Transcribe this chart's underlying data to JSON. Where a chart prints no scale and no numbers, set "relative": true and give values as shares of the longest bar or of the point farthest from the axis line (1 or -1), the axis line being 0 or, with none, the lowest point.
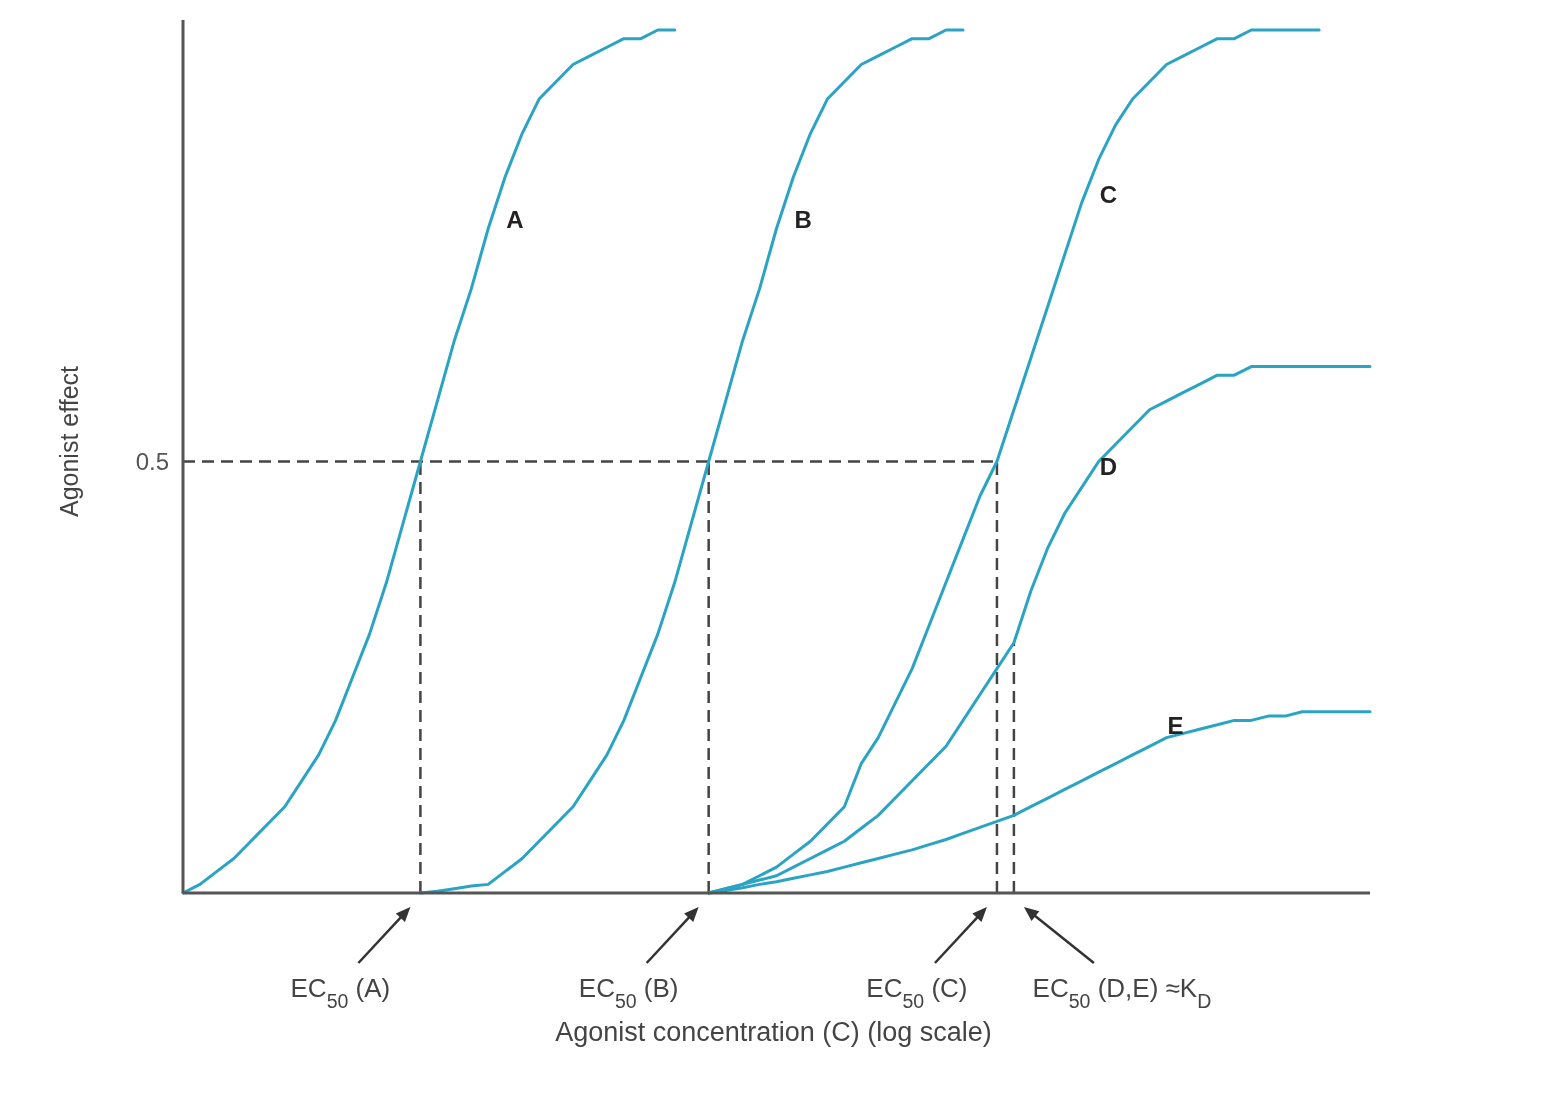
{
  "chart_data": {
    "type": "line",
    "relative": true,
    "xlabel": "Agonist concentration (C) (log scale)",
    "ylabel": "Agonist effect",
    "marker": "none",
    "line_style": "solid",
    "categories": [
      null,
      null,
      null,
      null,
      null,
      null,
      null,
      null,
      null,
      null,
      null,
      null,
      null,
      null,
      null,
      null,
      null,
      null,
      null,
      null,
      null,
      null,
      null,
      null,
      null,
      null,
      null,
      null,
      null,
      null,
      null,
      null,
      null,
      null,
      null,
      null,
      null,
      null,
      null,
      null,
      null,
      null,
      null,
      null,
      null,
      null,
      null,
      null,
      null,
      null,
      null,
      null,
      null,
      null,
      null,
      null,
      null,
      null,
      null,
      null,
      null,
      null,
      null,
      null,
      null,
      null,
      null,
      null,
      null,
      null,
      null
    ],
    "series": [
      {
        "name": "A",
        "color": "#2ba3c2",
        "values": [
          0,
          0.01,
          0.025,
          0.04,
          0.06,
          0.08,
          0.1,
          0.13,
          0.16,
          0.2,
          0.25,
          0.3,
          0.36,
          0.43,
          0.5,
          0.57,
          0.64,
          0.7,
          0.77,
          0.83,
          0.88,
          0.92,
          0.94,
          0.96,
          0.97,
          0.98,
          0.99,
          0.99,
          1.0,
          1.0,
          null,
          null,
          null,
          null,
          null,
          null,
          null,
          null,
          null,
          null,
          null,
          null,
          null,
          null,
          null,
          null,
          null,
          null,
          null,
          null,
          null,
          null,
          null,
          null,
          null,
          null,
          null,
          null,
          null,
          null,
          null,
          null,
          null,
          null,
          null,
          null,
          null,
          null,
          null,
          null,
          null
        ]
      },
      {
        "name": "B",
        "color": "#2ba3c2",
        "values": [
          null,
          null,
          null,
          null,
          null,
          null,
          null,
          null,
          null,
          null,
          null,
          null,
          null,
          null,
          0,
          0.002,
          0.005,
          0.008,
          0.01,
          0.025,
          0.04,
          0.06,
          0.08,
          0.1,
          0.13,
          0.16,
          0.2,
          0.25,
          0.3,
          0.36,
          0.43,
          0.5,
          0.57,
          0.64,
          0.7,
          0.77,
          0.83,
          0.88,
          0.92,
          0.94,
          0.96,
          0.97,
          0.98,
          0.99,
          0.99,
          1.0,
          1.0,
          null,
          null,
          null,
          null,
          null,
          null,
          null,
          null,
          null,
          null,
          null,
          null,
          null,
          null,
          null,
          null,
          null,
          null,
          null,
          null,
          null,
          null,
          null,
          null
        ]
      },
      {
        "name": "C",
        "color": "#2ba3c2",
        "values": [
          null,
          null,
          null,
          null,
          null,
          null,
          null,
          null,
          null,
          null,
          null,
          null,
          null,
          null,
          null,
          null,
          null,
          null,
          null,
          null,
          null,
          null,
          null,
          null,
          null,
          null,
          null,
          null,
          null,
          null,
          null,
          0,
          0.005,
          0.01,
          0.02,
          0.03,
          0.045,
          0.06,
          0.08,
          0.1,
          0.15,
          0.18,
          0.22,
          0.26,
          0.31,
          0.36,
          0.41,
          0.46,
          0.5,
          0.56,
          0.62,
          0.68,
          0.74,
          0.8,
          0.85,
          0.89,
          0.92,
          0.94,
          0.96,
          0.97,
          0.98,
          0.99,
          0.99,
          1.0,
          1.0,
          1.0,
          1.0,
          1.0,
          null,
          null,
          null
        ]
      },
      {
        "name": "D",
        "color": "#2ba3c2",
        "values": [
          null,
          null,
          null,
          null,
          null,
          null,
          null,
          null,
          null,
          null,
          null,
          null,
          null,
          null,
          null,
          null,
          null,
          null,
          null,
          null,
          null,
          null,
          null,
          null,
          null,
          null,
          null,
          null,
          null,
          null,
          null,
          0,
          0.005,
          0.01,
          0.015,
          0.02,
          0.03,
          0.04,
          0.05,
          0.06,
          0.075,
          0.09,
          0.11,
          0.13,
          0.15,
          0.17,
          0.2,
          0.23,
          0.26,
          0.29,
          0.35,
          0.4,
          0.44,
          0.47,
          0.5,
          0.52,
          0.54,
          0.56,
          0.57,
          0.58,
          0.59,
          0.6,
          0.6,
          0.61,
          0.61,
          0.61,
          0.61,
          0.61,
          0.61,
          0.61,
          0.61
        ]
      },
      {
        "name": "E",
        "color": "#2ba3c2",
        "values": [
          null,
          null,
          null,
          null,
          null,
          null,
          null,
          null,
          null,
          null,
          null,
          null,
          null,
          null,
          null,
          null,
          null,
          null,
          null,
          null,
          null,
          null,
          null,
          null,
          null,
          null,
          null,
          null,
          null,
          null,
          null,
          0,
          0.003,
          0.006,
          0.01,
          0.013,
          0.017,
          0.021,
          0.025,
          0.03,
          0.035,
          0.04,
          0.045,
          0.05,
          0.056,
          0.062,
          0.069,
          0.076,
          0.083,
          0.09,
          0.1,
          0.11,
          0.12,
          0.13,
          0.14,
          0.15,
          0.16,
          0.17,
          0.18,
          0.185,
          0.19,
          0.195,
          0.2,
          0.2,
          0.205,
          0.205,
          0.21,
          0.21,
          0.21,
          0.21,
          0.21
        ]
      }
    ],
    "annotations": [
      "0.5",
      "EC$_{50}$ (A)",
      "EC$_{50}$ (B)",
      "EC$_{50}$ (C)",
      "EC$_{50}$ (D,E) ≈K$_{D}$"
    ]
  }
}
